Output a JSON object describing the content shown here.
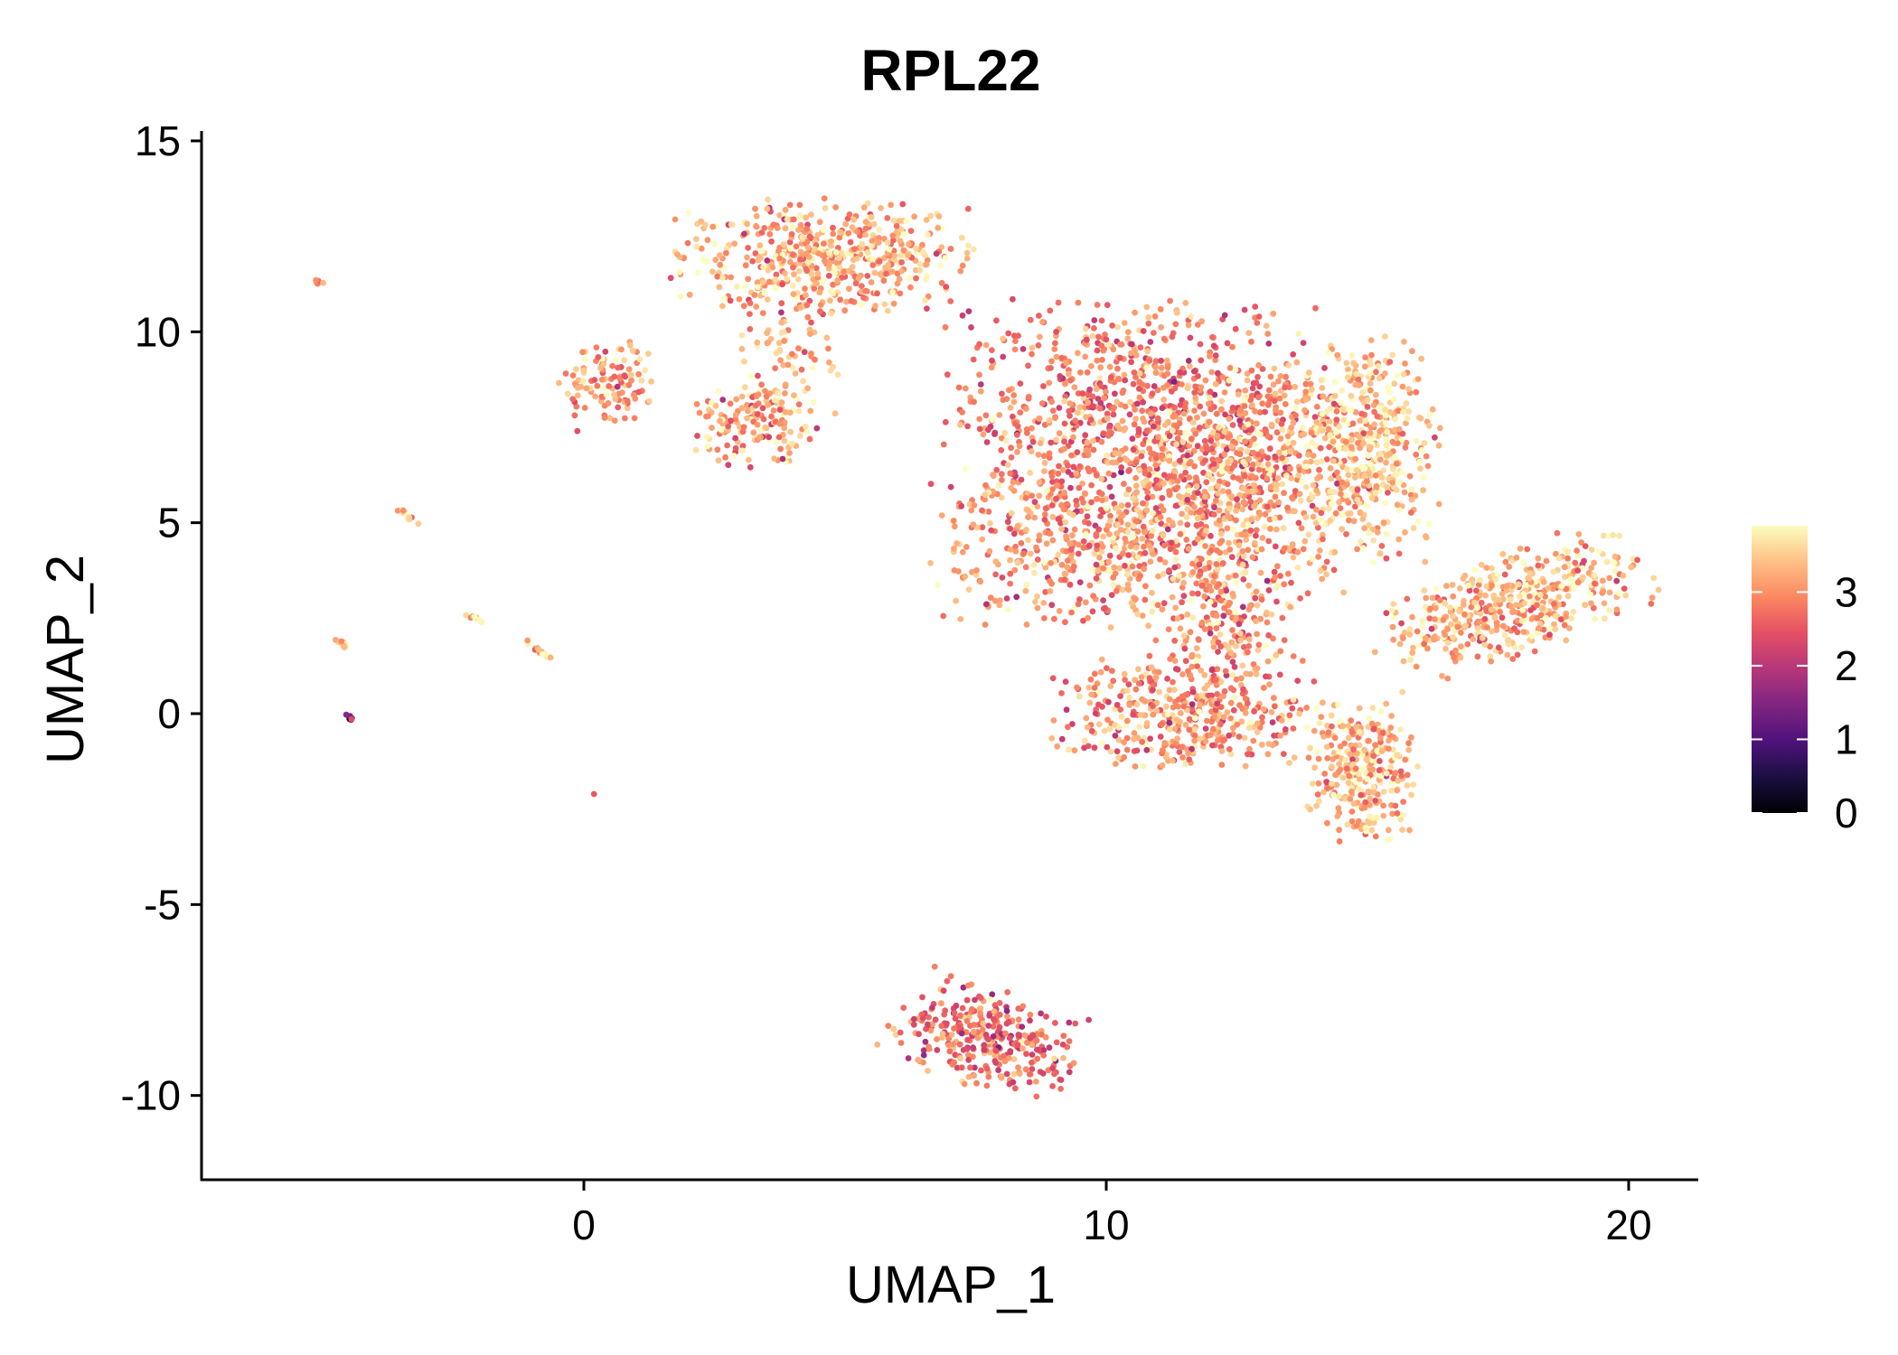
{
  "chart_data": {
    "type": "scatter",
    "title": "RPL22",
    "xlabel": "UMAP_1",
    "ylabel": "UMAP_2",
    "xlim": [
      -7.3,
      21.3
    ],
    "ylim": [
      -12.2,
      15.3
    ],
    "xticks": [
      0,
      10,
      20
    ],
    "xtick_labels": [
      "0",
      "10",
      "20"
    ],
    "yticks": [
      15,
      10,
      5,
      0,
      -5,
      -10
    ],
    "ytick_labels": [
      "15",
      "10",
      "5",
      "0",
      "-5",
      "-10"
    ],
    "grid": false,
    "colorbar": {
      "range": [
        0,
        3.9
      ],
      "ticks": [
        0,
        1,
        2,
        3
      ],
      "tick_labels": [
        "0",
        "1",
        "2",
        "3"
      ],
      "colormap": "magma",
      "placement": "right"
    },
    "clusters": [
      {
        "cx": 4.6,
        "cy": 12.0,
        "sx": 1.35,
        "sy": 0.7,
        "rot": 0,
        "n": 520,
        "mean": 3.2
      },
      {
        "cx": 3.9,
        "cy": 9.6,
        "sx": 0.45,
        "sy": 0.8,
        "rot": 0,
        "n": 80,
        "mean": 3.2
      },
      {
        "cx": 3.3,
        "cy": 7.6,
        "sx": 0.55,
        "sy": 0.55,
        "rot": -20,
        "n": 160,
        "mean": 3.2
      },
      {
        "cx": 0.5,
        "cy": 8.6,
        "sx": 0.45,
        "sy": 0.6,
        "rot": 0,
        "n": 110,
        "mean": 3.0
      },
      {
        "cx": 10.6,
        "cy": 7.8,
        "sx": 1.7,
        "sy": 1.4,
        "rot": 0,
        "n": 900,
        "mean": 2.8
      },
      {
        "cx": 10.0,
        "cy": 4.5,
        "sx": 1.6,
        "sy": 1.1,
        "rot": 0,
        "n": 600,
        "mean": 3.0
      },
      {
        "cx": 12.8,
        "cy": 6.2,
        "sx": 1.1,
        "sy": 1.4,
        "rot": 0,
        "n": 500,
        "mean": 3.1
      },
      {
        "cx": 15.0,
        "cy": 7.0,
        "sx": 0.65,
        "sy": 1.4,
        "rot": 0,
        "n": 420,
        "mean": 3.4
      },
      {
        "cx": 11.5,
        "cy": 0.0,
        "sx": 1.25,
        "sy": 0.7,
        "rot": 0,
        "n": 420,
        "mean": 3.0
      },
      {
        "cx": 12.3,
        "cy": 2.3,
        "sx": 0.7,
        "sy": 0.8,
        "rot": 0,
        "n": 180,
        "mean": 3.0
      },
      {
        "cx": 14.9,
        "cy": -1.5,
        "sx": 0.5,
        "sy": 0.85,
        "rot": 0,
        "n": 300,
        "mean": 3.3
      },
      {
        "cx": 17.7,
        "cy": 2.8,
        "sx": 1.3,
        "sy": 0.6,
        "rot": 28,
        "n": 480,
        "mean": 3.3
      },
      {
        "cx": 7.7,
        "cy": -8.5,
        "sx": 0.85,
        "sy": 0.6,
        "rot": -25,
        "n": 330,
        "mean": 2.7
      },
      {
        "cx": -5.1,
        "cy": 11.3,
        "sx": 0.05,
        "sy": 0.04,
        "rot": -40,
        "n": 6,
        "mean": 2.8
      },
      {
        "cx": -3.4,
        "cy": 5.2,
        "sx": 0.15,
        "sy": 0.03,
        "rot": -45,
        "n": 12,
        "mean": 3.4
      },
      {
        "cx": -2.1,
        "cy": 2.5,
        "sx": 0.1,
        "sy": 0.03,
        "rot": -45,
        "n": 10,
        "mean": 3.3
      },
      {
        "cx": -4.6,
        "cy": 1.8,
        "sx": 0.12,
        "sy": 0.03,
        "rot": -40,
        "n": 10,
        "mean": 3.3
      },
      {
        "cx": -0.8,
        "cy": 1.6,
        "sx": 0.2,
        "sy": 0.03,
        "rot": -40,
        "n": 14,
        "mean": 3.4
      },
      {
        "cx": -4.5,
        "cy": -0.1,
        "sx": 0.05,
        "sy": 0.03,
        "rot": -45,
        "n": 6,
        "mean": 1.3
      },
      {
        "cx": 0.2,
        "cy": -2.1,
        "sx": 0.01,
        "sy": 0.01,
        "rot": 0,
        "n": 1,
        "mean": 3.4
      }
    ]
  }
}
